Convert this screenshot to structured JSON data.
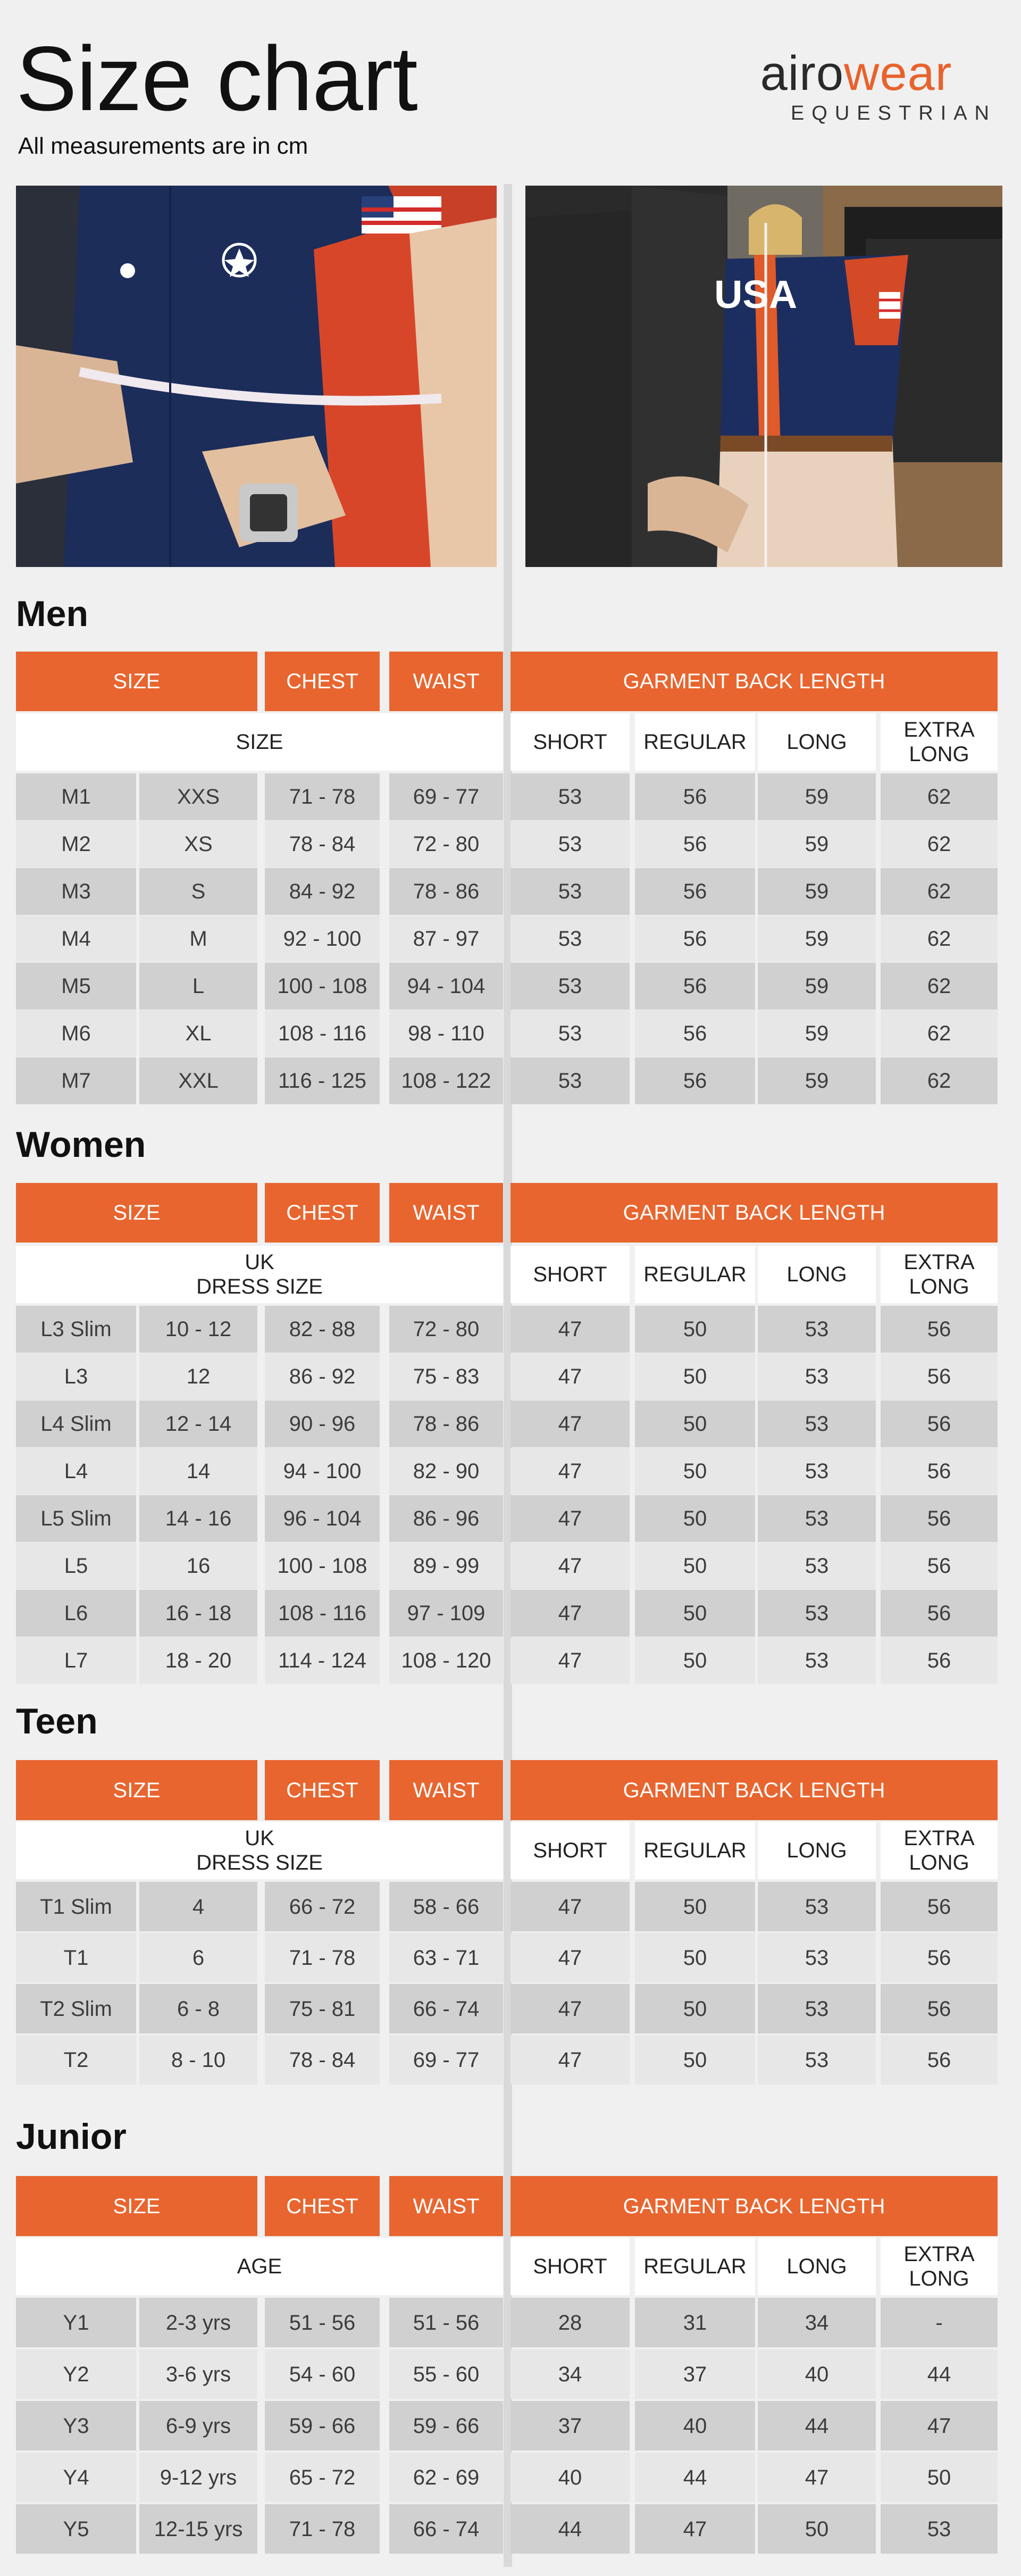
{
  "header": {
    "title": "Size chart",
    "subtitle": "All measurements are in cm",
    "logo_part1": "airo",
    "logo_part2": "wear",
    "logo_sub": "EQUESTRIAN"
  },
  "photos": {
    "right_shirt_text": "USA"
  },
  "colors": {
    "accent": "#e8652f",
    "row_dark": "#d0d0d0",
    "row_light": "#e7e7e7"
  },
  "sections": [
    {
      "title": "Men",
      "headers": {
        "size": "SIZE",
        "chest": "CHEST",
        "waist": "WAIST",
        "garment": "GARMENT BACK LENGTH"
      },
      "subheaders": {
        "size_label": "SIZE",
        "short": "SHORT",
        "regular": "REGULAR",
        "long": "LONG",
        "extra_long": "EXTRA\nLONG"
      },
      "rows": [
        [
          "M1",
          "XXS",
          "71 - 78",
          "69 - 77",
          "53",
          "56",
          "59",
          "62"
        ],
        [
          "M2",
          "XS",
          "78 - 84",
          "72 - 80",
          "53",
          "56",
          "59",
          "62"
        ],
        [
          "M3",
          "S",
          "84 - 92",
          "78 - 86",
          "53",
          "56",
          "59",
          "62"
        ],
        [
          "M4",
          "M",
          "92 - 100",
          "87 - 97",
          "53",
          "56",
          "59",
          "62"
        ],
        [
          "M5",
          "L",
          "100 - 108",
          "94 - 104",
          "53",
          "56",
          "59",
          "62"
        ],
        [
          "M6",
          "XL",
          "108 - 116",
          "98 - 110",
          "53",
          "56",
          "59",
          "62"
        ],
        [
          "M7",
          "XXL",
          "116 - 125",
          "108 - 122",
          "53",
          "56",
          "59",
          "62"
        ]
      ]
    },
    {
      "title": "Women",
      "headers": {
        "size": "SIZE",
        "chest": "CHEST",
        "waist": "WAIST",
        "garment": "GARMENT BACK LENGTH"
      },
      "subheaders": {
        "size_label": "UK\nDRESS SIZE",
        "short": "SHORT",
        "regular": "REGULAR",
        "long": "LONG",
        "extra_long": "EXTRA\nLONG"
      },
      "rows": [
        [
          "L3 Slim",
          "10 - 12",
          "82 - 88",
          "72 - 80",
          "47",
          "50",
          "53",
          "56"
        ],
        [
          "L3",
          "12",
          "86 - 92",
          "75 - 83",
          "47",
          "50",
          "53",
          "56"
        ],
        [
          "L4 Slim",
          "12 - 14",
          "90 - 96",
          "78 - 86",
          "47",
          "50",
          "53",
          "56"
        ],
        [
          "L4",
          "14",
          "94 - 100",
          "82 - 90",
          "47",
          "50",
          "53",
          "56"
        ],
        [
          "L5 Slim",
          "14 - 16",
          "96 - 104",
          "86 - 96",
          "47",
          "50",
          "53",
          "56"
        ],
        [
          "L5",
          "16",
          "100 - 108",
          "89 - 99",
          "47",
          "50",
          "53",
          "56"
        ],
        [
          "L6",
          "16 - 18",
          "108 - 116",
          "97 - 109",
          "47",
          "50",
          "53",
          "56"
        ],
        [
          "L7",
          "18 - 20",
          "114 - 124",
          "108 - 120",
          "47",
          "50",
          "53",
          "56"
        ]
      ]
    },
    {
      "title": "Teen",
      "headers": {
        "size": "SIZE",
        "chest": "CHEST",
        "waist": "WAIST",
        "garment": "GARMENT BACK LENGTH"
      },
      "subheaders": {
        "size_label": "UK\nDRESS SIZE",
        "short": "SHORT",
        "regular": "REGULAR",
        "long": "LONG",
        "extra_long": "EXTRA\nLONG"
      },
      "rows": [
        [
          "T1 Slim",
          "4",
          "66 - 72",
          "58 - 66",
          "47",
          "50",
          "53",
          "56"
        ],
        [
          "T1",
          "6",
          "71 - 78",
          "63 - 71",
          "47",
          "50",
          "53",
          "56"
        ],
        [
          "T2 Slim",
          "6 - 8",
          "75 - 81",
          "66 - 74",
          "47",
          "50",
          "53",
          "56"
        ],
        [
          "T2",
          "8 - 10",
          "78 - 84",
          "69 - 77",
          "47",
          "50",
          "53",
          "56"
        ]
      ]
    },
    {
      "title": "Junior",
      "headers": {
        "size": "SIZE",
        "chest": "CHEST",
        "waist": "WAIST",
        "garment": "GARMENT BACK LENGTH"
      },
      "subheaders": {
        "size_label": "AGE",
        "short": "SHORT",
        "regular": "REGULAR",
        "long": "LONG",
        "extra_long": "EXTRA\nLONG"
      },
      "rows": [
        [
          "Y1",
          "2-3 yrs",
          "51 - 56",
          "51 - 56",
          "28",
          "31",
          "34",
          "-"
        ],
        [
          "Y2",
          "3-6 yrs",
          "54 - 60",
          "55 - 60",
          "34",
          "37",
          "40",
          "44"
        ],
        [
          "Y3",
          "6-9 yrs",
          "59 - 66",
          "59 - 66",
          "37",
          "40",
          "44",
          "47"
        ],
        [
          "Y4",
          "9-12 yrs",
          "65 - 72",
          "62 - 69",
          "40",
          "44",
          "47",
          "50"
        ],
        [
          "Y5",
          "12-15 yrs",
          "71 - 78",
          "66 - 74",
          "44",
          "47",
          "50",
          "53"
        ]
      ]
    }
  ]
}
